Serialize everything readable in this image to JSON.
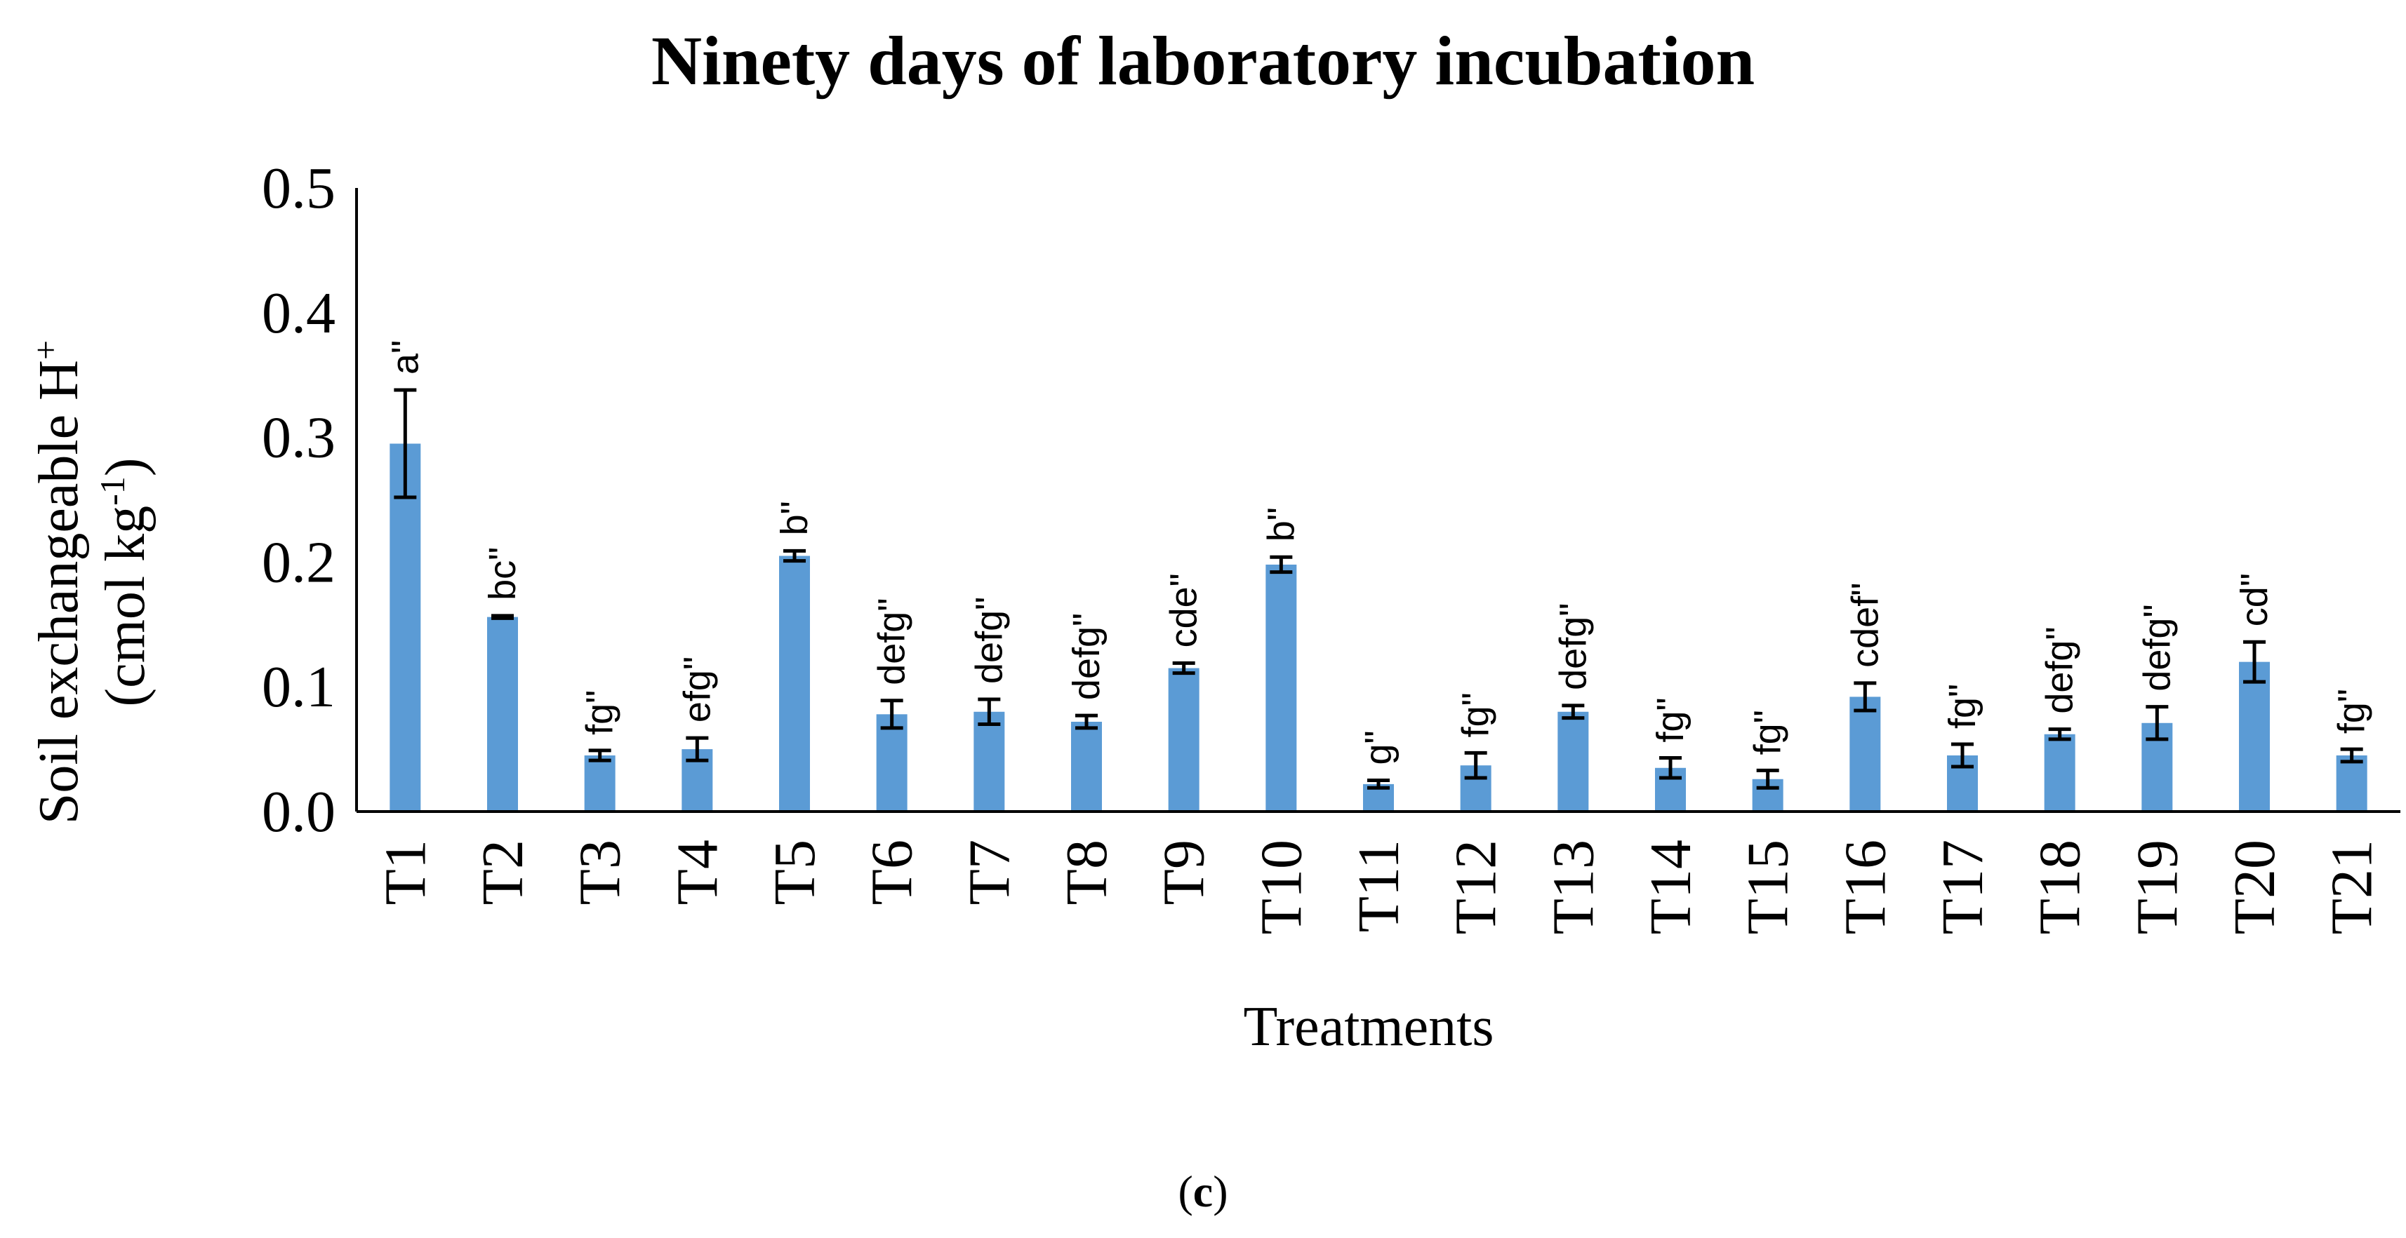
{
  "chart_data": {
    "type": "bar",
    "title": "Ninety days of laboratory  incubation",
    "xlabel": "Treatments",
    "ylabel_line1": "Soil exchangeable H",
    "ylabel_line1_sup": "+",
    "ylabel_line2_pre": "(cmol kg",
    "ylabel_line2_sup": "-1",
    "ylabel_line2_post": ")",
    "ylim": [
      0,
      0.5
    ],
    "yticks": [
      0.0,
      0.1,
      0.2,
      0.3,
      0.4,
      0.5
    ],
    "ytick_labels": [
      "0.0",
      "0.1",
      "0.2",
      "0.3",
      "0.4",
      "0.5"
    ],
    "categories": [
      "T1",
      "T2",
      "T3",
      "T4",
      "T5",
      "T6",
      "T7",
      "T8",
      "T9",
      "T10",
      "T11",
      "T12",
      "T13",
      "T14",
      "T15",
      "T16",
      "T17",
      "T18",
      "T19",
      "T20",
      "T21"
    ],
    "values": [
      0.295,
      0.156,
      0.045,
      0.05,
      0.205,
      0.078,
      0.08,
      0.072,
      0.115,
      0.198,
      0.022,
      0.037,
      0.08,
      0.035,
      0.026,
      0.092,
      0.045,
      0.062,
      0.071,
      0.12,
      0.045
    ],
    "errors": [
      0.043,
      0.001,
      0.004,
      0.009,
      0.004,
      0.011,
      0.01,
      0.005,
      0.004,
      0.006,
      0.003,
      0.01,
      0.005,
      0.008,
      0.007,
      0.011,
      0.009,
      0.004,
      0.013,
      0.016,
      0.005
    ],
    "significance_labels": [
      "a\"",
      "bc\"",
      "fg\"",
      "efg\"",
      "b\"",
      "defg\"",
      "defg\"",
      "defg\"",
      "cde\"",
      "b\"",
      "g\"",
      "fg\"",
      "defg\"",
      "fg\"",
      "fg\"",
      "cdef\"",
      "fg\"",
      "defg\"",
      "defg\"",
      "cd\"",
      "fg\""
    ],
    "bar_color": "#5B9BD5",
    "error_bar_color": "#000000",
    "grid": false,
    "legend": "none"
  },
  "caption": {
    "open": "(",
    "letter": "c",
    "close": ")"
  }
}
